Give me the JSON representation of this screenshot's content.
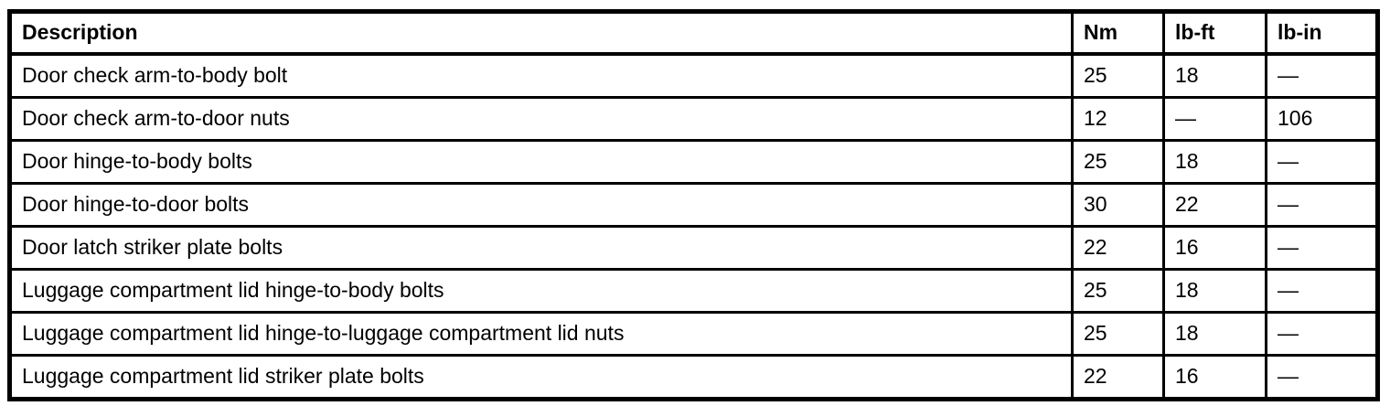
{
  "table": {
    "name": "fastener-torque-specifications",
    "columns": [
      {
        "key": "description",
        "label": "Description"
      },
      {
        "key": "nm",
        "label": "Nm"
      },
      {
        "key": "lb_ft",
        "label": "lb-ft"
      },
      {
        "key": "lb_in",
        "label": "lb-in"
      }
    ],
    "rows": [
      {
        "description": "Door check arm-to-body bolt",
        "nm": "25",
        "lb_ft": "18",
        "lb_in": "—"
      },
      {
        "description": "Door check arm-to-door nuts",
        "nm": "12",
        "lb_ft": "—",
        "lb_in": "106"
      },
      {
        "description": "Door hinge-to-body bolts",
        "nm": "25",
        "lb_ft": "18",
        "lb_in": "—"
      },
      {
        "description": "Door hinge-to-door bolts",
        "nm": "30",
        "lb_ft": "22",
        "lb_in": "—"
      },
      {
        "description": "Door latch striker plate bolts",
        "nm": "22",
        "lb_ft": "16",
        "lb_in": "—"
      },
      {
        "description": "Luggage compartment lid hinge-to-body bolts",
        "nm": "25",
        "lb_ft": "18",
        "lb_in": "—"
      },
      {
        "description": "Luggage compartment lid hinge-to-luggage compartment lid nuts",
        "nm": "25",
        "lb_ft": "18",
        "lb_in": "—"
      },
      {
        "description": "Luggage compartment lid striker plate bolts",
        "nm": "22",
        "lb_ft": "16",
        "lb_in": "—"
      }
    ],
    "colors": {
      "border": "#000000",
      "text": "#000000",
      "background": "#ffffff"
    }
  }
}
